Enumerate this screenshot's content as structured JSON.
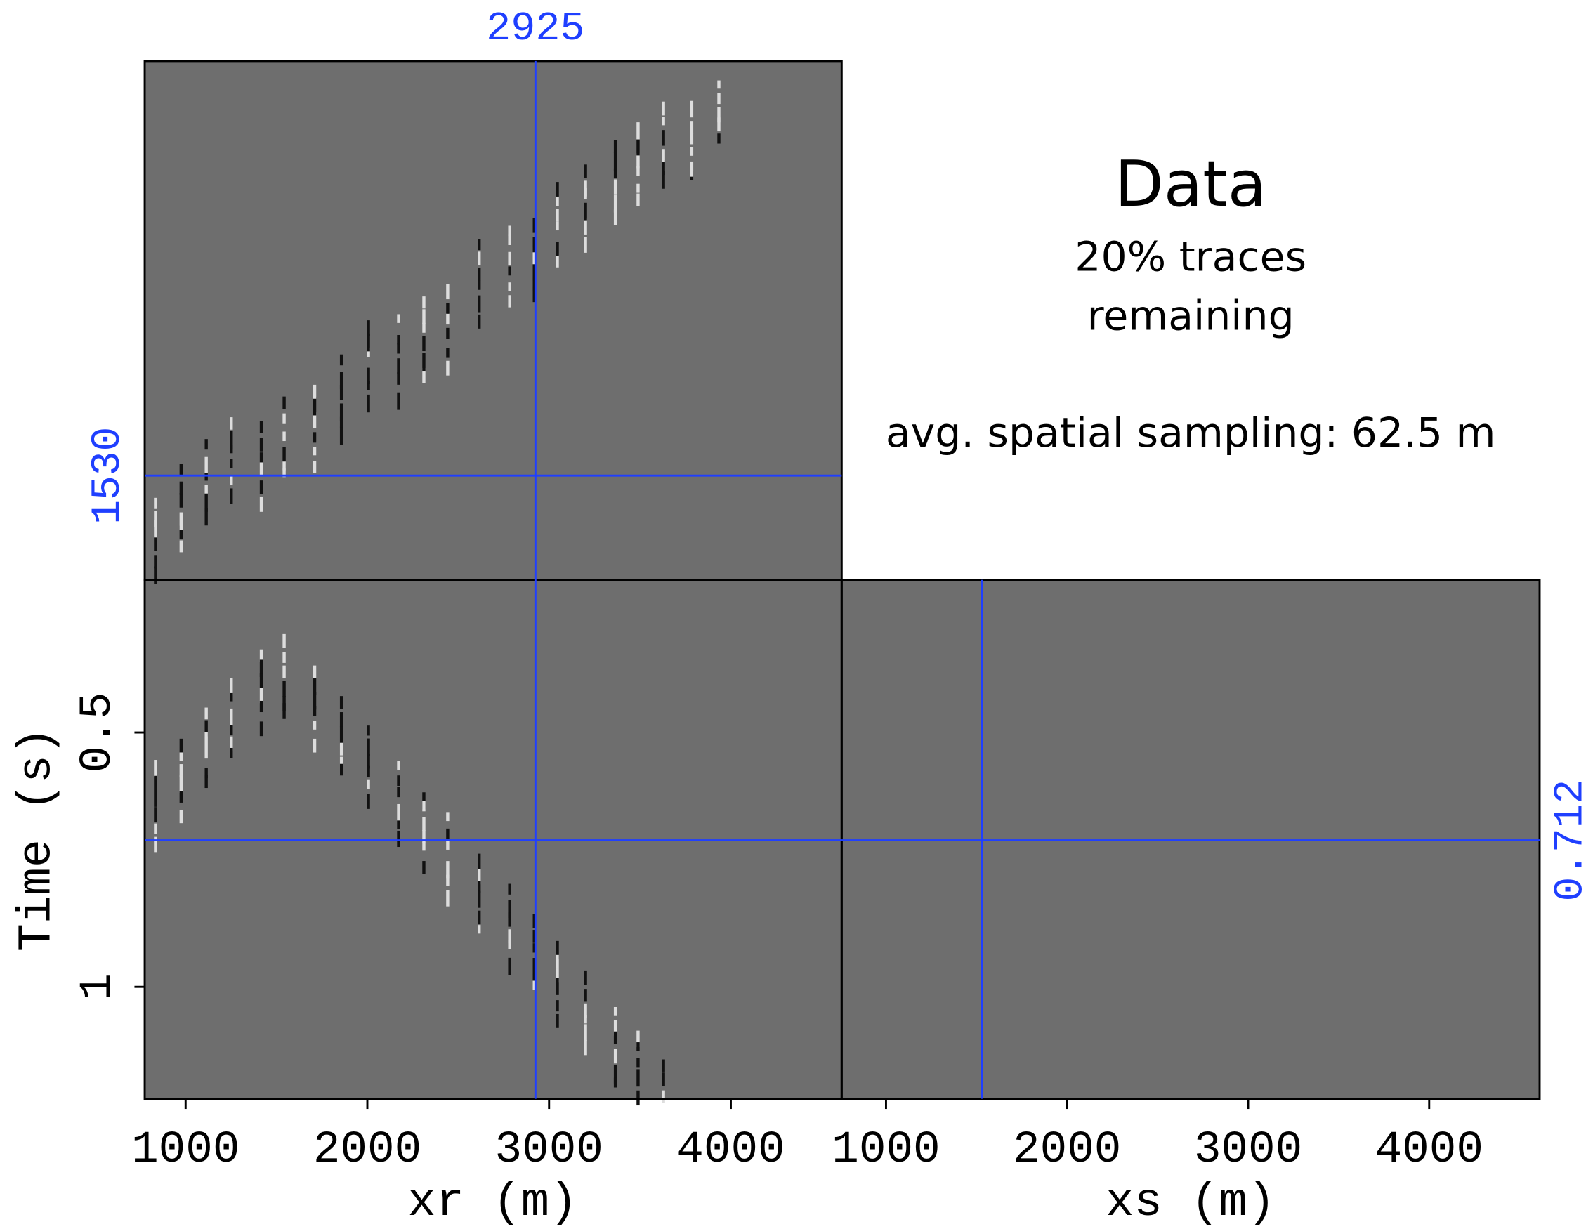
{
  "chart_data": {
    "type": "cube",
    "title": "Data",
    "subtitle": [
      "20% traces",
      "remaining"
    ],
    "annotation": "avg. spatial sampling:  62.5 m",
    "xr_label": "xr (m)",
    "xs_label": "xs (m)",
    "time_label": "Time (s)",
    "xrlim": [
      775,
      4610
    ],
    "xrticks": [
      1000,
      2000,
      3000,
      4000
    ],
    "xslim": [
      755,
      4610
    ],
    "xsticks": [
      1000,
      2000,
      3000,
      4000
    ],
    "tlim": [
      0.2,
      1.22
    ],
    "tticks": [
      0.5,
      1
    ],
    "slices": {
      "xr": 2925,
      "xs": 1530,
      "time": 0.712
    },
    "panel_color": "#6e6e6e",
    "slice_color": "#1f3fff"
  }
}
